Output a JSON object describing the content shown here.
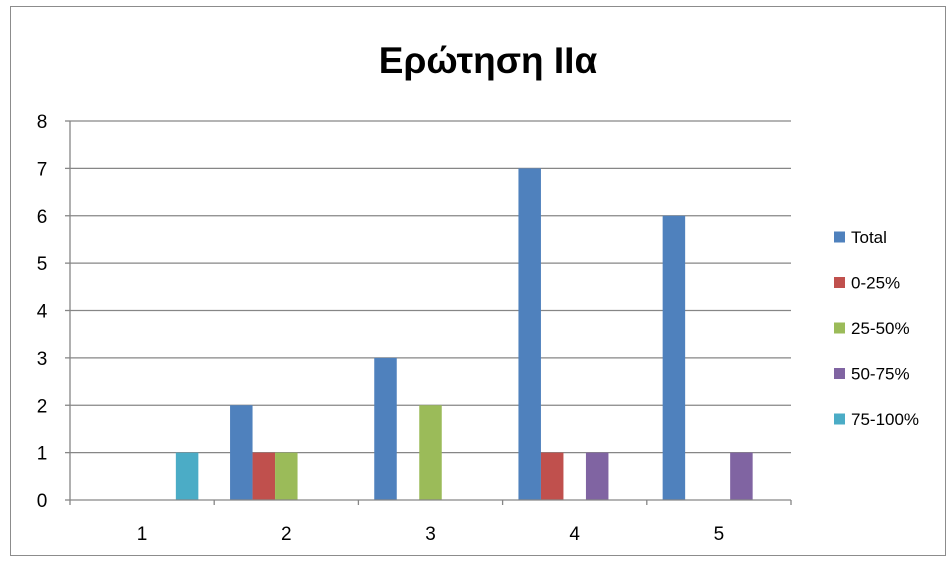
{
  "chart_data": {
    "type": "bar",
    "title": "Ερώτηση ΙΙα",
    "xlabel": "",
    "ylabel": "",
    "categories": [
      "1",
      "2",
      "3",
      "4",
      "5"
    ],
    "series": [
      {
        "name": "Total",
        "color": "#4f81bd",
        "values": [
          0,
          2,
          3,
          7,
          6
        ]
      },
      {
        "name": "0-25%",
        "color": "#c0504d",
        "values": [
          0,
          1,
          0,
          1,
          0
        ]
      },
      {
        "name": "25-50%",
        "color": "#9bbb59",
        "values": [
          0,
          1,
          2,
          0,
          0
        ]
      },
      {
        "name": "50-75%",
        "color": "#8064a2",
        "values": [
          0,
          0,
          0,
          1,
          1
        ]
      },
      {
        "name": "75-100%",
        "color": "#4bacc6",
        "values": [
          1,
          0,
          0,
          0,
          0
        ]
      }
    ],
    "ylim": [
      0,
      8
    ],
    "yticks": [
      "0",
      "1",
      "2",
      "3",
      "4",
      "5",
      "6",
      "7",
      "8"
    ],
    "grid": true,
    "legend_position": "right"
  }
}
